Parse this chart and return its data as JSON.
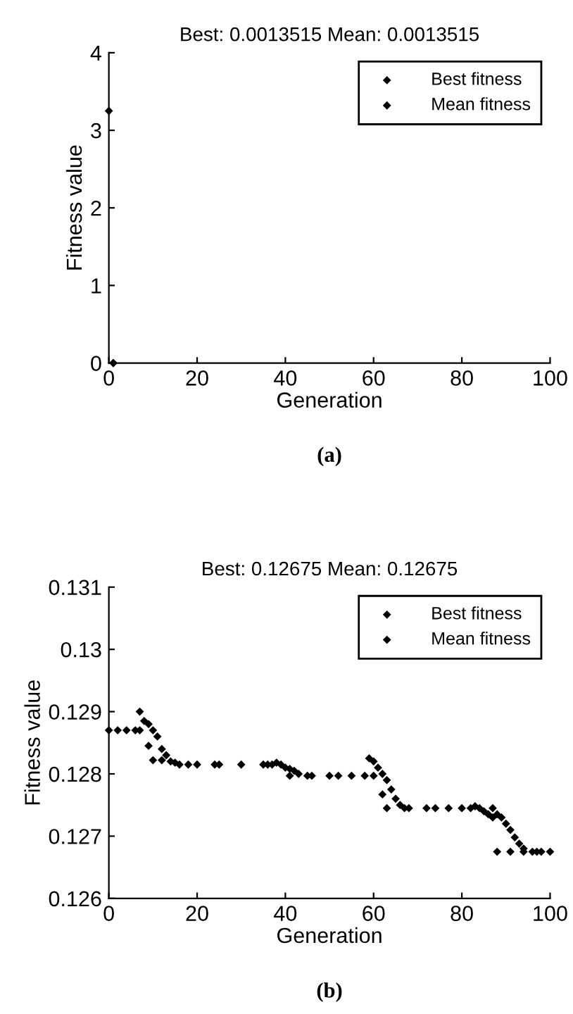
{
  "chart_data": [
    {
      "type": "scatter",
      "title": "Best: 0.0013515 Mean: 0.0013515",
      "xlabel": "Generation",
      "ylabel": "Fitness value",
      "annotations": [
        "(a)"
      ],
      "xlim": [
        0,
        100
      ],
      "xticks": [
        0,
        20,
        40,
        60,
        80,
        100
      ],
      "ylim": [
        0,
        4
      ],
      "yticks": [
        0,
        1,
        2,
        3,
        4
      ],
      "legend": "top right",
      "marker": "diamond",
      "grid": false,
      "series": [
        {
          "name": "Best fitness",
          "color": "#000000",
          "x": [
            1
          ],
          "values": [
            0
          ]
        },
        {
          "name": "Mean fitness",
          "color": "#000000",
          "x": [
            0,
            1
          ],
          "values": [
            3.25,
            0
          ]
        }
      ]
    },
    {
      "type": "scatter",
      "title": "Best: 0.12675 Mean: 0.12675",
      "xlabel": "Generation",
      "ylabel": "Fitness value",
      "annotations": [
        "(b)"
      ],
      "xlim": [
        0,
        100
      ],
      "xticks": [
        0,
        20,
        40,
        60,
        80,
        100
      ],
      "ylim": [
        0.126,
        0.131
      ],
      "yticks": [
        0.126,
        0.127,
        0.128,
        0.129,
        0.13,
        0.131
      ],
      "legend": "top right",
      "marker": "diamond",
      "grid": false,
      "series": [
        {
          "name": "Best fitness",
          "color": "#000000",
          "x": [
            0,
            2,
            4,
            6,
            7,
            9,
            10,
            12,
            14,
            16,
            20,
            25,
            30,
            35,
            37,
            41,
            45,
            50,
            55,
            60,
            62,
            63,
            67,
            72,
            77,
            82,
            87,
            88,
            91,
            94,
            97,
            100
          ],
          "values": [
            0.1287,
            0.1287,
            0.1287,
            0.1287,
            0.1287,
            0.12845,
            0.12822,
            0.12822,
            0.1282,
            0.12815,
            0.12815,
            0.12815,
            0.12815,
            0.12815,
            0.12815,
            0.12797,
            0.12797,
            0.12797,
            0.12797,
            0.12797,
            0.12767,
            0.12745,
            0.12745,
            0.12745,
            0.12745,
            0.12745,
            0.12745,
            0.12675,
            0.12675,
            0.12675,
            0.12675,
            0.12675
          ]
        },
        {
          "name": "Mean fitness",
          "color": "#000000",
          "x": [
            7,
            8,
            9,
            10,
            11,
            12,
            13,
            15,
            18,
            24,
            36,
            38,
            39,
            40,
            41,
            42,
            43,
            46,
            52,
            58,
            59,
            60,
            61,
            62,
            63,
            64,
            65,
            66,
            68,
            74,
            80,
            83,
            84,
            85,
            86,
            87,
            88,
            89,
            90,
            91,
            92,
            93,
            94,
            96,
            98
          ],
          "values": [
            0.129,
            0.12885,
            0.1288,
            0.1287,
            0.1286,
            0.1284,
            0.1283,
            0.12818,
            0.12815,
            0.12815,
            0.12815,
            0.12818,
            0.12815,
            0.1281,
            0.12808,
            0.12805,
            0.128,
            0.12797,
            0.12797,
            0.12797,
            0.12825,
            0.1282,
            0.1281,
            0.128,
            0.1279,
            0.12775,
            0.1276,
            0.1275,
            0.12745,
            0.12745,
            0.12745,
            0.12748,
            0.12745,
            0.1274,
            0.12735,
            0.1273,
            0.12735,
            0.1273,
            0.1272,
            0.1271,
            0.12698,
            0.12688,
            0.1268,
            0.12675,
            0.12675
          ]
        }
      ]
    }
  ]
}
